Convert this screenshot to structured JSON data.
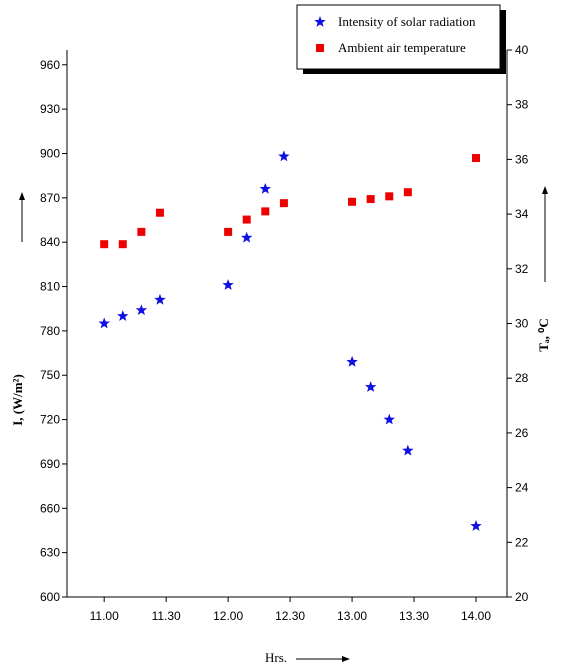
{
  "chart_data": {
    "type": "scatter",
    "x_label": "Hrs.",
    "y_label": "I, (W/m²)",
    "y2_label": "Tₐ, ⁰C",
    "xlim": [
      10.7,
      14.25
    ],
    "ylim": [
      600,
      970
    ],
    "y2lim": [
      20,
      40
    ],
    "xticks": [
      {
        "value": 11,
        "label": "11.00"
      },
      {
        "value": 11.5,
        "label": "11.30"
      },
      {
        "value": 12,
        "label": "12.00"
      },
      {
        "value": 12.5,
        "label": "12.30"
      },
      {
        "value": 13,
        "label": "13.00"
      },
      {
        "value": 13.5,
        "label": "13.30"
      },
      {
        "value": 14,
        "label": "14.00"
      }
    ],
    "yticks": [
      600,
      630,
      660,
      690,
      720,
      750,
      780,
      810,
      840,
      870,
      900,
      930,
      960
    ],
    "y2ticks": [
      20,
      22,
      24,
      26,
      28,
      30,
      32,
      34,
      36,
      38,
      40
    ],
    "legend": "top-right",
    "series": [
      {
        "name": "Intensity of solar radiation",
        "color": "#1010e0",
        "marker": "star",
        "x": [
          11.0,
          11.15,
          11.3,
          11.45,
          12.0,
          12.15,
          12.3,
          12.45,
          13.0,
          13.15,
          13.3,
          13.45,
          14.0
        ],
        "values": [
          785,
          790,
          794,
          801,
          811,
          843,
          876,
          898,
          759,
          742,
          720,
          699,
          648
        ]
      },
      {
        "name": "Ambient air temperature",
        "color": "#ee0000",
        "marker": "square",
        "axis": "y2",
        "x": [
          11.0,
          11.15,
          11.3,
          11.45,
          12.0,
          12.15,
          12.3,
          12.45,
          13.0,
          13.15,
          13.3,
          13.45,
          14.0
        ],
        "values": [
          32.9,
          32.9,
          33.35,
          34.05,
          33.35,
          33.8,
          34.1,
          34.4,
          34.45,
          34.55,
          34.65,
          34.8,
          36.05
        ]
      }
    ]
  }
}
